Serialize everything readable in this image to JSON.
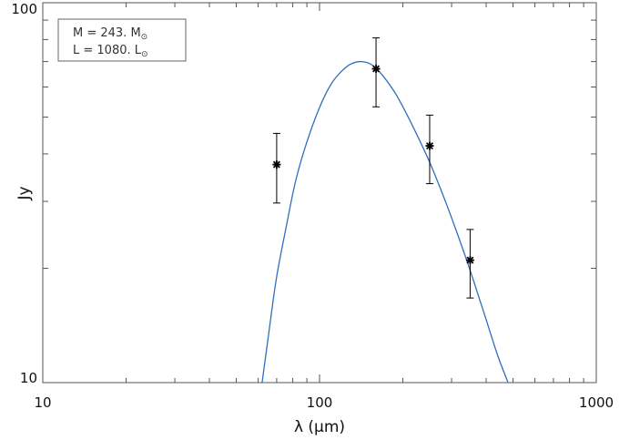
{
  "chart_data": {
    "type": "scatter",
    "xlabel": "λ (μm)",
    "ylabel": "Jy",
    "x_scale": "log",
    "y_scale": "log",
    "xlim": [
      10,
      1000
    ],
    "ylim": [
      10,
      100
    ],
    "x_ticks": [
      {
        "value": 10,
        "label": "10"
      },
      {
        "value": 100,
        "label": "100"
      },
      {
        "value": 1000,
        "label": "1000"
      }
    ],
    "y_ticks": [
      {
        "value": 10,
        "label": "10"
      },
      {
        "value": 100,
        "label": "100"
      }
    ],
    "grid": false,
    "legend": {
      "placement": "top-left",
      "mass_label": "M = 243. M",
      "lum_label": "L = 1080. L",
      "solar_symbol": "⊙"
    },
    "series": [
      {
        "kind": "points",
        "marker": "asterisk",
        "color": "#000000",
        "points": [
          {
            "x": 70,
            "y": 37.5,
            "y_low": 29.7,
            "y_high": 45.3
          },
          {
            "x": 160,
            "y": 67.0,
            "y_low": 53.2,
            "y_high": 80.8
          },
          {
            "x": 250,
            "y": 42.0,
            "y_low": 33.4,
            "y_high": 50.6
          },
          {
            "x": 350,
            "y": 21.0,
            "y_low": 16.7,
            "y_high": 25.3
          }
        ]
      },
      {
        "kind": "model-curve",
        "color": "#2f6fba",
        "curve": [
          {
            "x": 62,
            "y": 10.0
          },
          {
            "x": 66,
            "y": 14.0
          },
          {
            "x": 70,
            "y": 19.0
          },
          {
            "x": 76,
            "y": 26.0
          },
          {
            "x": 82,
            "y": 34.0
          },
          {
            "x": 90,
            "y": 43.0
          },
          {
            "x": 100,
            "y": 53.0
          },
          {
            "x": 110,
            "y": 61.0
          },
          {
            "x": 120,
            "y": 66.0
          },
          {
            "x": 130,
            "y": 69.0
          },
          {
            "x": 142,
            "y": 70.0
          },
          {
            "x": 155,
            "y": 68.5
          },
          {
            "x": 170,
            "y": 64.0
          },
          {
            "x": 190,
            "y": 57.0
          },
          {
            "x": 215,
            "y": 48.0
          },
          {
            "x": 250,
            "y": 38.0
          },
          {
            "x": 290,
            "y": 29.0
          },
          {
            "x": 340,
            "y": 21.0
          },
          {
            "x": 390,
            "y": 15.5
          },
          {
            "x": 440,
            "y": 11.8
          },
          {
            "x": 480,
            "y": 10.0
          }
        ]
      }
    ]
  }
}
